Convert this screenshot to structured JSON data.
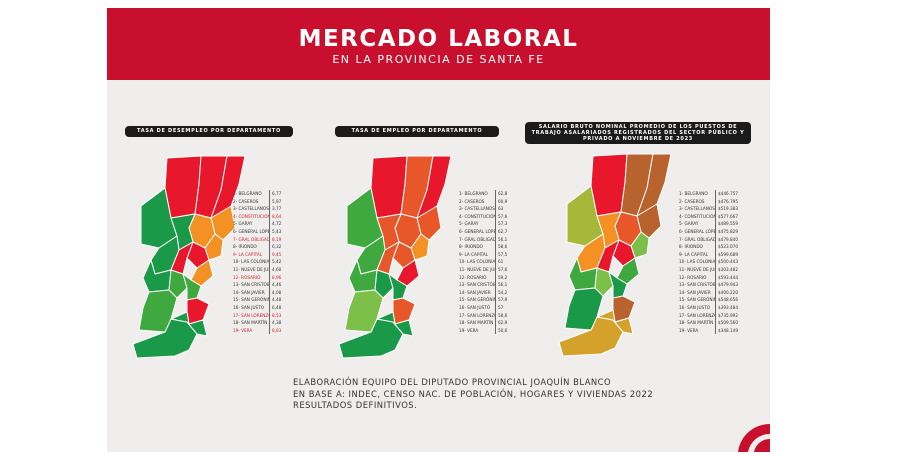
{
  "header": {
    "title": "MERCADO LABORAL",
    "subtitle": "EN LA PROVINCIA DE SANTA FE"
  },
  "colors": {
    "banner": "#c8102e",
    "red": "#e8172b",
    "dark_green": "#1a9a48",
    "green": "#3fa93f",
    "light_green": "#7cc04a",
    "orange": "#f39124",
    "dark_orange": "#e8572a",
    "brown": "#b8622d",
    "tan": "#d4a12b",
    "yellow_green": "#a6b83a",
    "map_stroke": "#ffffff",
    "highlight_text": "#d81e2a"
  },
  "panels": [
    {
      "title": "TASA DE DESEMPLEO POR DEPARTAMENTO",
      "region_colors": [
        "dark_green",
        "red",
        "red",
        "red",
        "orange",
        "dark_green",
        "orange",
        "dark_green",
        "orange",
        "red",
        "dark_green",
        "red",
        "orange",
        "dark_green",
        "green",
        "green",
        "green",
        "red",
        "dark_green"
      ],
      "legend": [
        {
          "name": "1- BELGRANO",
          "value": "6,77",
          "highlight": false
        },
        {
          "name": "2- CASEROS",
          "value": "5,97",
          "highlight": false
        },
        {
          "name": "3- CASTELLANOS",
          "value": "3,77",
          "highlight": false
        },
        {
          "name": "4- CONSTITUCIÓN",
          "value": "8,64",
          "highlight": true
        },
        {
          "name": "5- GARAY",
          "value": "4,72",
          "highlight": false
        },
        {
          "name": "6- GENERAL LÓPEZ",
          "value": "5,43",
          "highlight": false
        },
        {
          "name": "7- GRAL OBLIGADO",
          "value": "8,19",
          "highlight": true
        },
        {
          "name": "8- IRIONDO",
          "value": "6,32",
          "highlight": false
        },
        {
          "name": "9- LA CAPITAL",
          "value": "9,45",
          "highlight": true
        },
        {
          "name": "10- LAS COLONIAS",
          "value": "5,42",
          "highlight": false
        },
        {
          "name": "11- NUEVE DE JULIO",
          "value": "4,60",
          "highlight": false
        },
        {
          "name": "12- ROSARIO",
          "value": "8,96",
          "highlight": true
        },
        {
          "name": "13- SAN CRISTÓBAL",
          "value": "4,46",
          "highlight": false
        },
        {
          "name": "14- SAN JAVIER",
          "value": "4,08",
          "highlight": false
        },
        {
          "name": "15- SAN GERÓNIMO",
          "value": "4,48",
          "highlight": false
        },
        {
          "name": "16- SAN JUSTO",
          "value": "6,48",
          "highlight": false
        },
        {
          "name": "17- SAN LORENZO",
          "value": "8,53",
          "highlight": true
        },
        {
          "name": "18- SAN MARTÍN",
          "value": "4,38",
          "highlight": false
        },
        {
          "name": "19- VERA",
          "value": "8,83",
          "highlight": true
        }
      ]
    },
    {
      "title": "TASA DE EMPLEO POR DEPARTAMENTO",
      "region_colors": [
        "dark_green",
        "red",
        "dark_orange",
        "red",
        "dark_orange",
        "green",
        "dark_orange",
        "dark_orange",
        "orange",
        "dark_orange",
        "green",
        "dark_orange",
        "red",
        "green",
        "dark_green",
        "dark_green",
        "light_green",
        "dark_orange",
        "dark_green"
      ],
      "legend": [
        {
          "name": "1- BELGRANO",
          "value": "62,8",
          "highlight": false
        },
        {
          "name": "2- CASEROS",
          "value": "60,9",
          "highlight": false
        },
        {
          "name": "3- CASTELLANOS",
          "value": "63",
          "highlight": false
        },
        {
          "name": "4- CONSTITUCIÓN",
          "value": "57,6",
          "highlight": false
        },
        {
          "name": "5- GARAY",
          "value": "57,3",
          "highlight": false
        },
        {
          "name": "6- GENERAL LÓPEZ",
          "value": "62,7",
          "highlight": false
        },
        {
          "name": "7- GRAL OBLIGADO",
          "value": "56,1",
          "highlight": false
        },
        {
          "name": "8- IRIONDO",
          "value": "58,6",
          "highlight": false
        },
        {
          "name": "9- LA CAPITAL",
          "value": "57,5",
          "highlight": false
        },
        {
          "name": "10- LAS COLONIAS",
          "value": "61",
          "highlight": false
        },
        {
          "name": "11- NUEVE DE JULIO",
          "value": "57,6",
          "highlight": false
        },
        {
          "name": "12- ROSARIO",
          "value": "59,2",
          "highlight": false
        },
        {
          "name": "13- SAN CRISTÓBAL",
          "value": "56,1",
          "highlight": false
        },
        {
          "name": "14- SAN JAVIER",
          "value": "54,2",
          "highlight": false
        },
        {
          "name": "15- SAN GERÓNIMO",
          "value": "57,9",
          "highlight": false
        },
        {
          "name": "16- SAN JUSTO",
          "value": "57",
          "highlight": false
        },
        {
          "name": "17- SAN LORENZO",
          "value": "58,6",
          "highlight": false
        },
        {
          "name": "18- SAN MARTÍN",
          "value": "62,9",
          "highlight": false
        },
        {
          "name": "19- VERA",
          "value": "50,6",
          "highlight": false
        }
      ]
    },
    {
      "title": "SALARIO BRUTO NOMINAL PROMEDIO DE LOS PUESTOS DE TRABAJO ASALARIADOS REGISTRADOS DEL SECTOR PÚBLICO Y PRIVADO A NOVIEMBRE DE 2023",
      "region_colors": [
        "tan",
        "red",
        "brown",
        "brown",
        "brown",
        "yellow_green",
        "dark_orange",
        "orange",
        "light_green",
        "red",
        "orange",
        "red",
        "green",
        "green",
        "light_green",
        "dark_green",
        "dark_green",
        "brown",
        "tan"
      ],
      "legend": [
        {
          "name": "1- BELGRANO",
          "value": "$446.757",
          "highlight": false
        },
        {
          "name": "2- CASEROS",
          "value": "$476.795",
          "highlight": false
        },
        {
          "name": "3- CASTELLANOS",
          "value": "$519.383",
          "highlight": false
        },
        {
          "name": "4- CONSTITUCIÓN",
          "value": "$577.667",
          "highlight": false
        },
        {
          "name": "5- GARAY",
          "value": "$489.559",
          "highlight": false
        },
        {
          "name": "6- GENERAL LÓPEZ",
          "value": "$475.829",
          "highlight": false
        },
        {
          "name": "7- GRAL OBLIGADO",
          "value": "$479.840",
          "highlight": false
        },
        {
          "name": "8- IRIONDO",
          "value": "$523.070",
          "highlight": false
        },
        {
          "name": "9- LA CAPITAL",
          "value": "$599.689",
          "highlight": false
        },
        {
          "name": "10- LAS COLONIAS",
          "value": "$500.443",
          "highlight": false
        },
        {
          "name": "11- NUEVE DE JULIO",
          "value": "$303.482",
          "highlight": false
        },
        {
          "name": "12- ROSARIO",
          "value": "$593.444",
          "highlight": false
        },
        {
          "name": "13- SAN CRISTÓBAL",
          "value": "$479.943",
          "highlight": false
        },
        {
          "name": "14- SAN JAVIER",
          "value": "$400.220",
          "highlight": false
        },
        {
          "name": "15- SAN GERÓNIMO",
          "value": "$548.656",
          "highlight": false
        },
        {
          "name": "16- SAN JUSTO",
          "value": "$393.484",
          "highlight": false
        },
        {
          "name": "17- SAN LORENZO",
          "value": "$735.992",
          "highlight": false
        },
        {
          "name": "18- SAN MARTÍN",
          "value": "$509.560",
          "highlight": false
        },
        {
          "name": "19- VERA",
          "value": "$348.149",
          "highlight": false
        }
      ]
    }
  ],
  "credit": {
    "line1": "ELABORACIÓN EQUIPO DEL DIPUTADO PROVINCIAL JOAQUÍN BLANCO",
    "line2": "EN BASE A: INDEC, CENSO NAC. DE POBLACIÓN, HOGARES Y VIVIENDAS 2022",
    "line3": "RESULTADOS DEFINITIVOS."
  }
}
